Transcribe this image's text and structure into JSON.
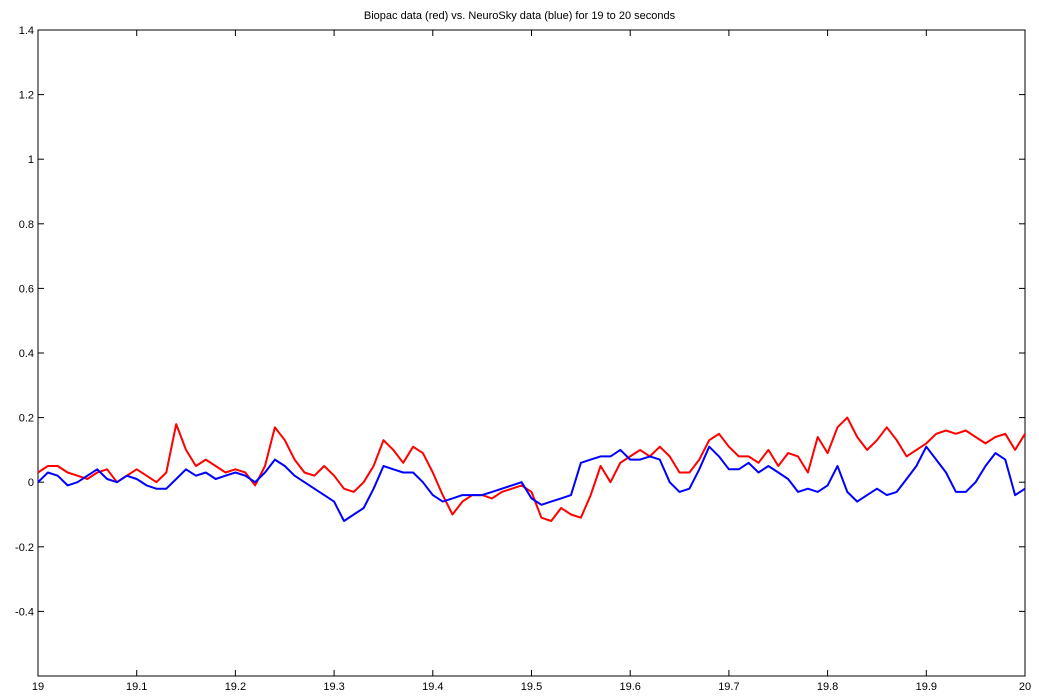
{
  "chart_data": {
    "type": "line",
    "title": "Biopac data (red) vs. NeuroSky data (blue) for 19 to 20 seconds",
    "xlabel": "",
    "ylabel": "",
    "xlim": [
      19,
      20
    ],
    "ylim": [
      -0.6,
      1.4
    ],
    "grid": false,
    "x_ticks": [
      "19",
      "19.1",
      "19.2",
      "19.3",
      "19.4",
      "19.5",
      "19.6",
      "19.7",
      "19.8",
      "19.9",
      "20"
    ],
    "y_ticks": [
      "1.4",
      "1.2",
      "1",
      "0.8",
      "0.6",
      "0.4",
      "0.2",
      "0",
      "-0.2",
      "-0.4"
    ],
    "series": [
      {
        "color": "#ff0000",
        "x": [
          19.0,
          19.01,
          19.02,
          19.03,
          19.04,
          19.05,
          19.06,
          19.07,
          19.08,
          19.09,
          19.1,
          19.11,
          19.12,
          19.13,
          19.14,
          19.15,
          19.16,
          19.17,
          19.18,
          19.19,
          19.2,
          19.21,
          19.22,
          19.23,
          19.24,
          19.25,
          19.26,
          19.27,
          19.28,
          19.29,
          19.3,
          19.31,
          19.32,
          19.33,
          19.34,
          19.35,
          19.36,
          19.37,
          19.38,
          19.39,
          19.4,
          19.41,
          19.42,
          19.43,
          19.44,
          19.45,
          19.46,
          19.47,
          19.48,
          19.49,
          19.5,
          19.51,
          19.52,
          19.53,
          19.54,
          19.55,
          19.56,
          19.57,
          19.58,
          19.59,
          19.6,
          19.61,
          19.62,
          19.63,
          19.64,
          19.65,
          19.66,
          19.67,
          19.68,
          19.69,
          19.7,
          19.71,
          19.72,
          19.73,
          19.74,
          19.75,
          19.76,
          19.77,
          19.78,
          19.79,
          19.8,
          19.81,
          19.82,
          19.83,
          19.84,
          19.85,
          19.86,
          19.87,
          19.88,
          19.89,
          19.9,
          19.91,
          19.92,
          19.93,
          19.94,
          19.95,
          19.96,
          19.97,
          19.98,
          19.99,
          20.0
        ],
        "y": [
          0.03,
          0.05,
          0.05,
          0.03,
          0.02,
          0.01,
          0.03,
          0.04,
          0.0,
          0.02,
          0.04,
          0.02,
          0.0,
          0.03,
          0.18,
          0.1,
          0.05,
          0.07,
          0.05,
          0.03,
          0.04,
          0.03,
          -0.01,
          0.05,
          0.17,
          0.13,
          0.07,
          0.03,
          0.02,
          0.05,
          0.02,
          -0.02,
          -0.03,
          0.0,
          0.05,
          0.13,
          0.1,
          0.06,
          0.11,
          0.09,
          0.03,
          -0.04,
          -0.1,
          -0.06,
          -0.04,
          -0.04,
          -0.05,
          -0.03,
          -0.02,
          -0.01,
          -0.03,
          -0.11,
          -0.12,
          -0.08,
          -0.1,
          -0.11,
          -0.04,
          0.05,
          0.0,
          0.06,
          0.08,
          0.1,
          0.08,
          0.11,
          0.08,
          0.03,
          0.03,
          0.07,
          0.13,
          0.15,
          0.11,
          0.08,
          0.08,
          0.06,
          0.1,
          0.05,
          0.09,
          0.08,
          0.03,
          0.14,
          0.09,
          0.17,
          0.2,
          0.14,
          0.1,
          0.13,
          0.17,
          0.13,
          0.08,
          0.1,
          0.12,
          0.15,
          0.16,
          0.15,
          0.16,
          0.14,
          0.12,
          0.14,
          0.15,
          0.1,
          0.15
        ]
      },
      {
        "color": "#0000ff",
        "x": [
          19.0,
          19.01,
          19.02,
          19.03,
          19.04,
          19.05,
          19.06,
          19.07,
          19.08,
          19.09,
          19.1,
          19.11,
          19.12,
          19.13,
          19.14,
          19.15,
          19.16,
          19.17,
          19.18,
          19.19,
          19.2,
          19.21,
          19.22,
          19.23,
          19.24,
          19.25,
          19.26,
          19.27,
          19.28,
          19.29,
          19.3,
          19.31,
          19.32,
          19.33,
          19.34,
          19.35,
          19.36,
          19.37,
          19.38,
          19.39,
          19.4,
          19.41,
          19.42,
          19.43,
          19.44,
          19.45,
          19.46,
          19.47,
          19.48,
          19.49,
          19.5,
          19.51,
          19.52,
          19.53,
          19.54,
          19.55,
          19.56,
          19.57,
          19.58,
          19.59,
          19.6,
          19.61,
          19.62,
          19.63,
          19.64,
          19.65,
          19.66,
          19.67,
          19.68,
          19.69,
          19.7,
          19.71,
          19.72,
          19.73,
          19.74,
          19.75,
          19.76,
          19.77,
          19.78,
          19.79,
          19.8,
          19.81,
          19.82,
          19.83,
          19.84,
          19.85,
          19.86,
          19.87,
          19.88,
          19.89,
          19.9,
          19.91,
          19.92,
          19.93,
          19.94,
          19.95,
          19.96,
          19.97,
          19.98,
          19.99,
          20.0
        ],
        "y": [
          0.0,
          0.03,
          0.02,
          -0.01,
          0.0,
          0.02,
          0.04,
          0.01,
          0.0,
          0.02,
          0.01,
          -0.01,
          -0.02,
          -0.02,
          0.01,
          0.04,
          0.02,
          0.03,
          0.01,
          0.02,
          0.03,
          0.02,
          0.0,
          0.03,
          0.07,
          0.05,
          0.02,
          0.0,
          -0.02,
          -0.04,
          -0.06,
          -0.12,
          -0.1,
          -0.08,
          -0.02,
          0.05,
          0.04,
          0.03,
          0.03,
          0.0,
          -0.04,
          -0.06,
          -0.05,
          -0.04,
          -0.04,
          -0.04,
          -0.03,
          -0.02,
          -0.01,
          0.0,
          -0.05,
          -0.07,
          -0.06,
          -0.05,
          -0.04,
          0.06,
          0.07,
          0.08,
          0.08,
          0.1,
          0.07,
          0.07,
          0.08,
          0.07,
          0.0,
          -0.03,
          -0.02,
          0.04,
          0.11,
          0.08,
          0.04,
          0.04,
          0.06,
          0.03,
          0.05,
          0.03,
          0.01,
          -0.03,
          -0.02,
          -0.03,
          -0.01,
          0.05,
          -0.03,
          -0.06,
          -0.04,
          -0.02,
          -0.04,
          -0.03,
          0.01,
          0.05,
          0.11,
          0.07,
          0.03,
          -0.03,
          -0.03,
          0.0,
          0.05,
          0.09,
          0.07,
          -0.04,
          -0.02
        ]
      }
    ]
  }
}
